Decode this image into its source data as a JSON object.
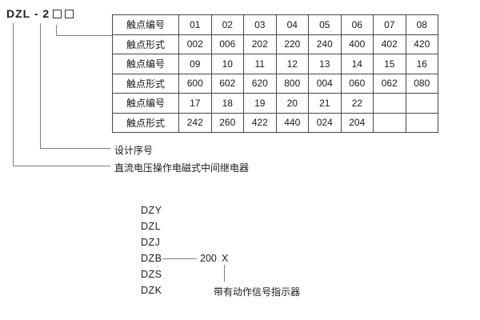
{
  "header": {
    "model_code": "DZL - 2",
    "placeholder_square_count": 2
  },
  "table": {
    "rows": [
      {
        "label": "触点编号",
        "cells": [
          "01",
          "02",
          "03",
          "04",
          "05",
          "06",
          "07",
          "08"
        ]
      },
      {
        "label": "触点形式",
        "cells": [
          "002",
          "006",
          "202",
          "220",
          "240",
          "400",
          "402",
          "420"
        ]
      },
      {
        "label": "触点编号",
        "cells": [
          "09",
          "10",
          "11",
          "12",
          "13",
          "14",
          "15",
          "16"
        ]
      },
      {
        "label": "触点形式",
        "cells": [
          "600",
          "602",
          "620",
          "800",
          "004",
          "060",
          "062",
          "080"
        ]
      },
      {
        "label": "触点编号",
        "cells": [
          "17",
          "18",
          "19",
          "20",
          "21",
          "22",
          "",
          ""
        ]
      },
      {
        "label": "触点形式",
        "cells": [
          "242",
          "260",
          "422",
          "440",
          "024",
          "204",
          "",
          ""
        ]
      }
    ]
  },
  "callouts": {
    "design_serial": "设计序号",
    "relay_description": "直流电压操作电磁式中间继电器"
  },
  "series_list": {
    "items": [
      "DZY",
      "DZL",
      "DZJ",
      "DZB",
      "DZS",
      "DZK"
    ],
    "dzb_value": "200",
    "dzb_variable": "X",
    "indicator_note": "带有动作信号指示器"
  },
  "colors": {
    "background": "#ffffff",
    "text": "#1a1a1a",
    "table_border": "#474747",
    "leader_line": "#7d7d7d"
  }
}
